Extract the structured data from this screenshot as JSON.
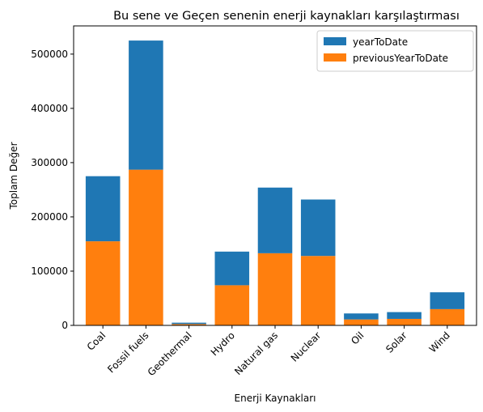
{
  "chart_data": {
    "type": "bar",
    "stacked": true,
    "title": "Bu sene ve Geçen senenin enerji kaynakları karşılaştırması",
    "xlabel": "Enerji Kaynakları",
    "ylabel": "Toplam Değer",
    "categories": [
      "Coal",
      "Fossil fuels",
      "Geothermal",
      "Hydro",
      "Natural gas",
      "Nuclear",
      "Oil",
      "Solar",
      "Wind"
    ],
    "series": [
      {
        "name": "previousYearToDate",
        "color": "#ff7f0e",
        "values": [
          155000,
          287000,
          2500,
          74000,
          133000,
          128000,
          11000,
          12000,
          30000
        ]
      },
      {
        "name": "yearToDate",
        "color": "#1f77b4",
        "values": [
          120000,
          238000,
          2500,
          62000,
          121000,
          104000,
          11000,
          12500,
          31000
        ]
      }
    ],
    "ylim": [
      0,
      552000
    ],
    "yticks": [
      0,
      100000,
      200000,
      300000,
      400000,
      500000
    ],
    "ytick_labels": [
      "0",
      "100000",
      "200000",
      "300000",
      "400000",
      "500000"
    ],
    "legend": {
      "position": "top-right",
      "entries": [
        {
          "label": "yearToDate",
          "color": "#1f77b4"
        },
        {
          "label": "previousYearToDate",
          "color": "#ff7f0e"
        }
      ]
    },
    "grid": false
  }
}
